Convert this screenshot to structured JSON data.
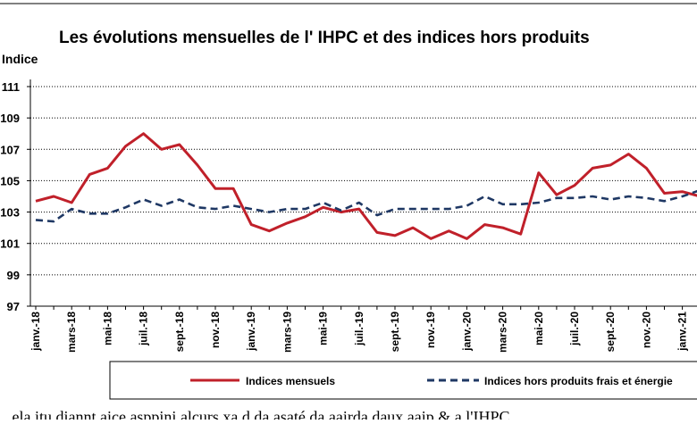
{
  "chart_data": {
    "type": "line",
    "title": "Les évolutions mensuelles de l' IHPC et des indices  hors produits",
    "ylabel": "Indice",
    "xlabel": "",
    "ylim": [
      97,
      111
    ],
    "yticks": [
      "97",
      "99",
      "101",
      "103",
      "105",
      "107",
      "109",
      "111"
    ],
    "grid": true,
    "legend_position": "bottom",
    "x": [
      "janv.-18",
      "févr.-18",
      "mars-18",
      "avr.-18",
      "mai-18",
      "juin-18",
      "juil.-18",
      "août-18",
      "sept.-18",
      "oct.-18",
      "nov.-18",
      "déc.-18",
      "janv.-19",
      "févr.-19",
      "mars-19",
      "avr.-19",
      "mai-19",
      "juin-19",
      "juil.-19",
      "août-19",
      "sept.-19",
      "oct.-19",
      "nov.-19",
      "déc.-19",
      "janv.-20",
      "févr.-20",
      "mars-20",
      "avr.-20",
      "mai-20",
      "juin-20",
      "juil.-20",
      "août-20",
      "sept.-20",
      "oct.-20",
      "nov.-20",
      "déc.-20",
      "janv.-21",
      "févr.-21"
    ],
    "xtick_labels": [
      "janv.-18",
      "mars-18",
      "mai-18",
      "juil.-18",
      "sept.-18",
      "nov.-18",
      "janv.-19",
      "mars-19",
      "mai-19",
      "juil.-19",
      "sept.-19",
      "nov.-19",
      "janv.-20",
      "mars-20",
      "mai-20",
      "juil.-20",
      "sept.-20",
      "nov.-20",
      "janv.-21"
    ],
    "series": [
      {
        "name": "Indices mensuels",
        "color": "#c0202a",
        "style": "solid",
        "values": [
          103.7,
          104.0,
          103.6,
          105.4,
          105.8,
          107.2,
          108.0,
          107.0,
          107.3,
          106.0,
          104.5,
          104.5,
          102.2,
          101.8,
          102.3,
          102.7,
          103.3,
          103.0,
          103.2,
          101.7,
          101.5,
          102.0,
          101.3,
          101.8,
          101.3,
          102.2,
          102.0,
          101.6,
          105.5,
          104.1,
          104.7,
          105.8,
          106.0,
          106.7,
          105.8,
          104.2,
          104.3,
          104.0
        ]
      },
      {
        "name": "Indices  hors produits frais et énergie",
        "color": "#1f3864",
        "style": "dashed",
        "values": [
          102.5,
          102.4,
          103.2,
          102.9,
          102.9,
          103.3,
          103.8,
          103.4,
          103.8,
          103.3,
          103.2,
          103.4,
          103.2,
          103.0,
          103.2,
          103.2,
          103.6,
          103.1,
          103.6,
          102.8,
          103.2,
          103.2,
          103.2,
          103.2,
          103.4,
          104.0,
          103.5,
          103.5,
          103.6,
          103.9,
          103.9,
          104.0,
          103.8,
          104.0,
          103.9,
          103.7,
          104.0,
          104.4
        ]
      }
    ]
  },
  "footer_text": "...ela itu diannt aice asppini alcurs xa d da asaté da aairda daux aaip & a  l'IHPC ..."
}
